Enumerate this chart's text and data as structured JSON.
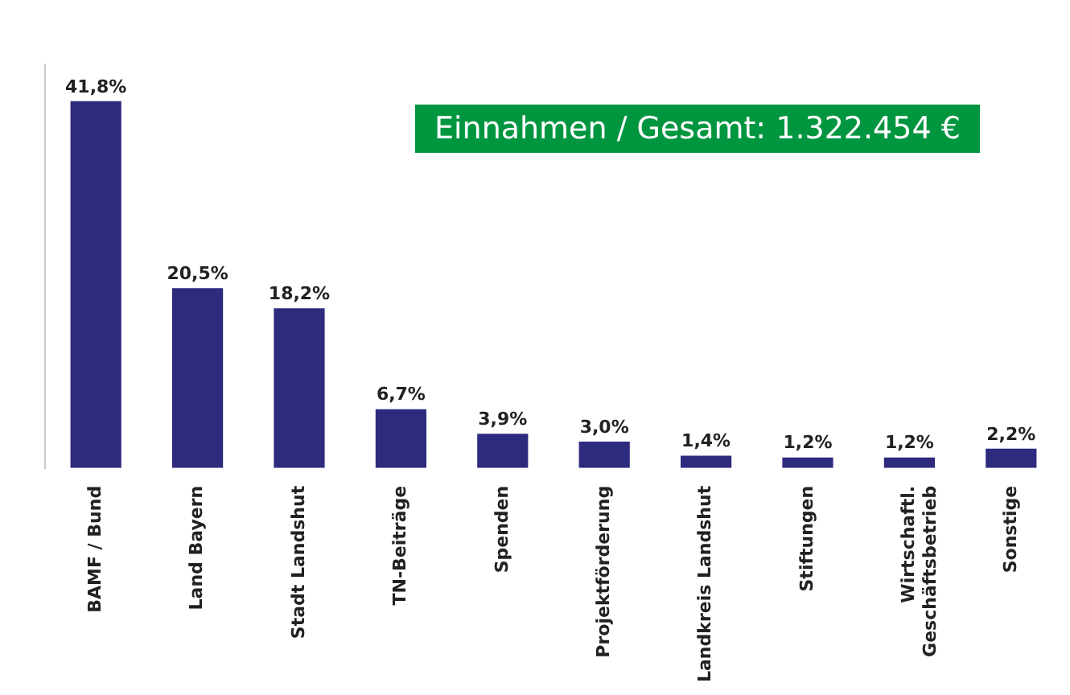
{
  "chart_data": {
    "type": "bar",
    "title": "Einnahmen / Gesamt: 1.322.454 €",
    "categories": [
      "BAMF / Bund",
      "Land Bayern",
      "Stadt Landshut",
      "TN-Beiträge",
      "Spenden",
      "Projektförderung",
      "Landkreis Landshut",
      "Stiftungen",
      "Wirtschaftl.\nGeschäftsbetrieb",
      "Sonstige"
    ],
    "values": [
      41.8,
      20.5,
      18.2,
      6.7,
      3.9,
      3.0,
      1.4,
      1.2,
      1.2,
      2.2
    ],
    "value_labels": [
      "41,8%",
      "20,5%",
      "18,2%",
      "6,7%",
      "3,9%",
      "3,0%",
      "1,4%",
      "1,2%",
      "1,2%",
      "2,2%"
    ],
    "color": "#2e2a7e",
    "ylim": [
      0,
      46
    ],
    "tick_labels": "x",
    "grid": false,
    "legend": false
  }
}
